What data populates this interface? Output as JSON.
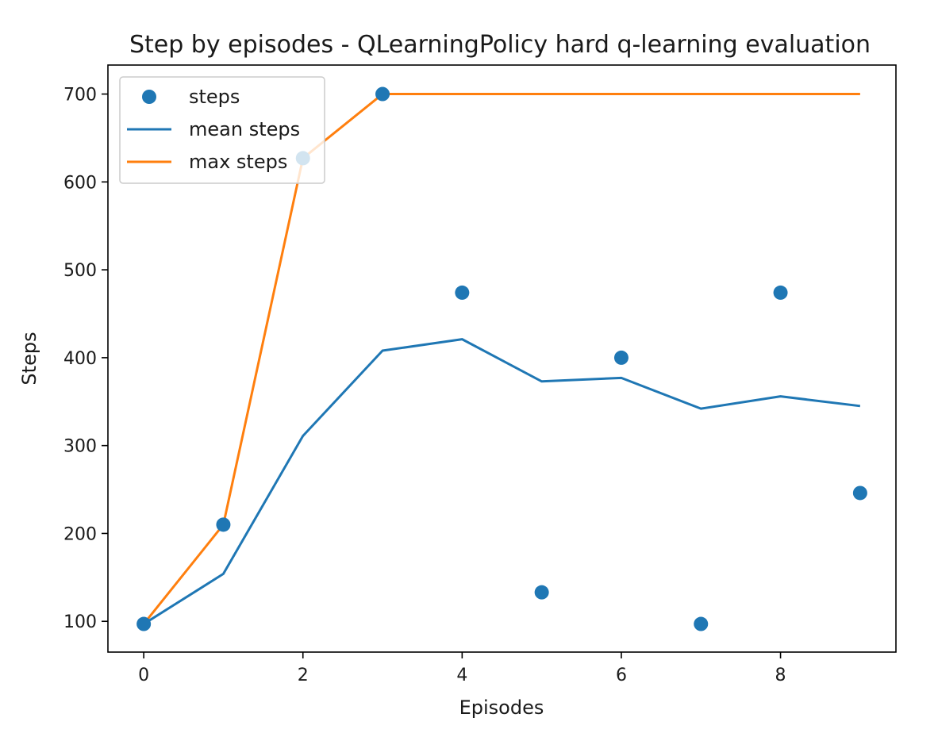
{
  "chart_data": {
    "type": "line",
    "title": "Step by episodes - QLearningPolicy hard q-learning evaluation",
    "xlabel": "Episodes",
    "ylabel": "Steps",
    "xlim": [
      -0.45,
      9.45
    ],
    "ylim": [
      65,
      733
    ],
    "xticks": [
      0,
      2,
      4,
      6,
      8
    ],
    "yticks": [
      100,
      200,
      300,
      400,
      500,
      600,
      700
    ],
    "grid": false,
    "legend_position": "upper left",
    "x": [
      0,
      1,
      2,
      3,
      4,
      5,
      6,
      7,
      8,
      9
    ],
    "series": [
      {
        "name": "steps",
        "kind": "scatter",
        "color": "#1f77b4",
        "values": [
          97,
          210,
          627,
          700,
          474,
          133,
          400,
          97,
          474,
          246
        ]
      },
      {
        "name": "mean steps",
        "kind": "line",
        "color": "#1f77b4",
        "values": [
          97,
          154,
          311,
          408,
          421,
          373,
          377,
          342,
          356,
          345
        ]
      },
      {
        "name": "max steps",
        "kind": "line",
        "color": "#ff7f0e",
        "values": [
          97,
          210,
          627,
          700,
          700,
          700,
          700,
          700,
          700,
          700
        ]
      }
    ]
  }
}
